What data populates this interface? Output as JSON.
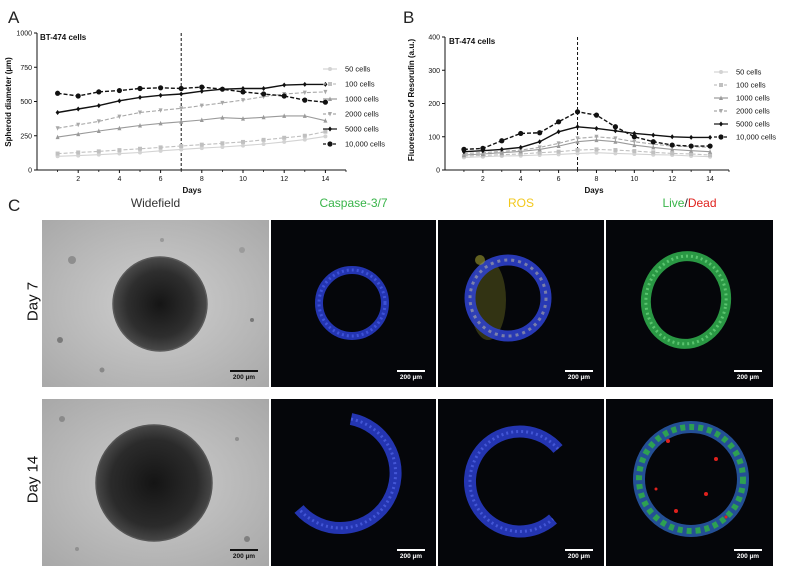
{
  "panels": {
    "a": "A",
    "b": "B",
    "c": "C"
  },
  "chart_data": [
    {
      "type": "line",
      "title": "BT-474 cells",
      "xlabel": "Days",
      "ylabel": "Spheroid diameter (µm)",
      "xlim": [
        0,
        15
      ],
      "ylim": [
        0,
        1000
      ],
      "xticks": [
        2,
        4,
        6,
        8,
        10,
        12,
        14
      ],
      "yticks": [
        0,
        250,
        500,
        750,
        1000
      ],
      "vline_x": 7,
      "grid": false,
      "legend": "right",
      "x": [
        1,
        2,
        3,
        4,
        5,
        6,
        7,
        8,
        9,
        10,
        11,
        12,
        13,
        14
      ],
      "series": [
        {
          "name": "50 cells",
          "values": [
            100,
            105,
            112,
            120,
            128,
            140,
            150,
            160,
            168,
            178,
            190,
            205,
            222,
            245
          ]
        },
        {
          "name": "100 cells",
          "values": [
            120,
            128,
            136,
            145,
            155,
            165,
            175,
            185,
            195,
            205,
            220,
            235,
            250,
            280
          ]
        },
        {
          "name": "1000 cells",
          "values": [
            240,
            262,
            285,
            305,
            325,
            340,
            352,
            365,
            382,
            375,
            385,
            395,
            395,
            360
          ]
        },
        {
          "name": "2000 cells",
          "values": [
            305,
            330,
            355,
            390,
            420,
            435,
            450,
            470,
            490,
            510,
            535,
            555,
            565,
            570
          ]
        },
        {
          "name": "5000 cells",
          "values": [
            420,
            445,
            470,
            505,
            530,
            545,
            555,
            575,
            590,
            595,
            595,
            620,
            625,
            625
          ]
        },
        {
          "name": "10,000 cells",
          "values": [
            560,
            540,
            570,
            580,
            595,
            600,
            595,
            605,
            590,
            570,
            555,
            540,
            510,
            495
          ]
        }
      ]
    },
    {
      "type": "line",
      "title": "BT-474 cells",
      "xlabel": "Days",
      "ylabel": "Fluorescence of Resorufin (a.u.)",
      "xlim": [
        0,
        15
      ],
      "ylim": [
        0,
        400
      ],
      "xticks": [
        2,
        4,
        6,
        8,
        10,
        12,
        14
      ],
      "yticks": [
        0,
        100,
        200,
        300,
        400
      ],
      "vline_x": 7,
      "grid": false,
      "legend": "right",
      "x": [
        1,
        2,
        3,
        4,
        5,
        6,
        7,
        8,
        9,
        10,
        11,
        12,
        13,
        14
      ],
      "series": [
        {
          "name": "50 cells",
          "values": [
            38,
            40,
            42,
            43,
            45,
            47,
            50,
            52,
            50,
            48,
            46,
            45,
            42,
            40
          ]
        },
        {
          "name": "100 cells",
          "values": [
            42,
            44,
            46,
            48,
            52,
            55,
            60,
            62,
            60,
            57,
            53,
            50,
            48,
            45
          ]
        },
        {
          "name": "1000 cells",
          "values": [
            45,
            48,
            52,
            56,
            62,
            72,
            85,
            90,
            85,
            75,
            68,
            62,
            58,
            55
          ]
        },
        {
          "name": "2000 cells",
          "values": [
            50,
            52,
            56,
            60,
            68,
            80,
            95,
            100,
            95,
            85,
            78,
            72,
            70,
            68
          ]
        },
        {
          "name": "5000 cells",
          "values": [
            55,
            58,
            62,
            68,
            85,
            115,
            130,
            125,
            118,
            110,
            105,
            100,
            98,
            98
          ]
        },
        {
          "name": "10,000 cells",
          "values": [
            62,
            65,
            88,
            110,
            112,
            145,
            175,
            165,
            130,
            100,
            85,
            75,
            72,
            72
          ]
        }
      ]
    }
  ],
  "styles": {
    "colors": [
      "#d3d3d3",
      "#c0c0c0",
      "#9a9a9a",
      "#a8a8a8",
      "#111111",
      "#111111"
    ],
    "dashed": [
      false,
      true,
      false,
      true,
      false,
      true
    ],
    "markers": [
      "circle",
      "square",
      "triangle-up",
      "triangle-down",
      "diamond",
      "circle"
    ]
  },
  "micrographs": {
    "columns": [
      {
        "label": "Widefield",
        "color": "#333333"
      },
      {
        "label": "Caspase-3/7",
        "color": "#38b449"
      },
      {
        "label": "ROS",
        "color": "#f2c81c"
      }
    ],
    "live_label": "Live",
    "live_color": "#38b449",
    "separator": "/",
    "dead_label": "Dead",
    "dead_color": "#e0211d",
    "rows": [
      "Day 7",
      "Day 14"
    ],
    "scale_bar": "200 µm"
  }
}
